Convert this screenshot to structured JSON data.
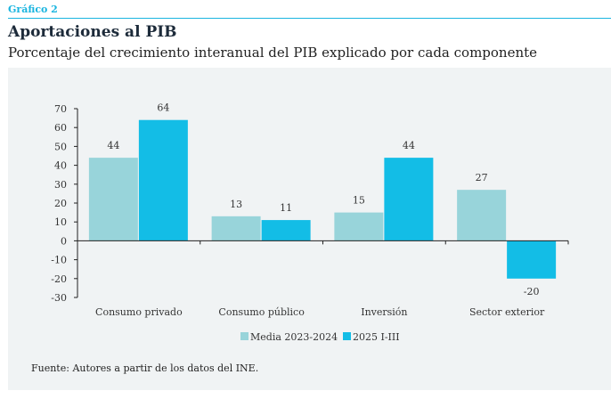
{
  "header": {
    "label": "Gráfico 2",
    "title": "Aportaciones al PIB",
    "subtitle": "Porcentaje del crecimiento interanual del PIB explicado por cada componente"
  },
  "source": "Fuente: Autores a partir de los datos del INE.",
  "chart_data": {
    "type": "bar",
    "title": "Aportaciones al PIB",
    "xlabel": "",
    "ylabel": "",
    "ylim": [
      -30,
      70
    ],
    "yticks": [
      70,
      60,
      50,
      40,
      30,
      20,
      10,
      0,
      -10,
      -20,
      -30
    ],
    "categories": [
      "Consumo privado",
      "Consumo público",
      "Inversión",
      "Sector exterior"
    ],
    "series": [
      {
        "name": "Media 2023-2024",
        "color": "#98d4da",
        "values": [
          44,
          13,
          15,
          27
        ]
      },
      {
        "name": "2025 I-III",
        "color": "#13bde6",
        "values": [
          64,
          11,
          44,
          -20
        ]
      }
    ],
    "legend": "bottom",
    "grid": false
  }
}
